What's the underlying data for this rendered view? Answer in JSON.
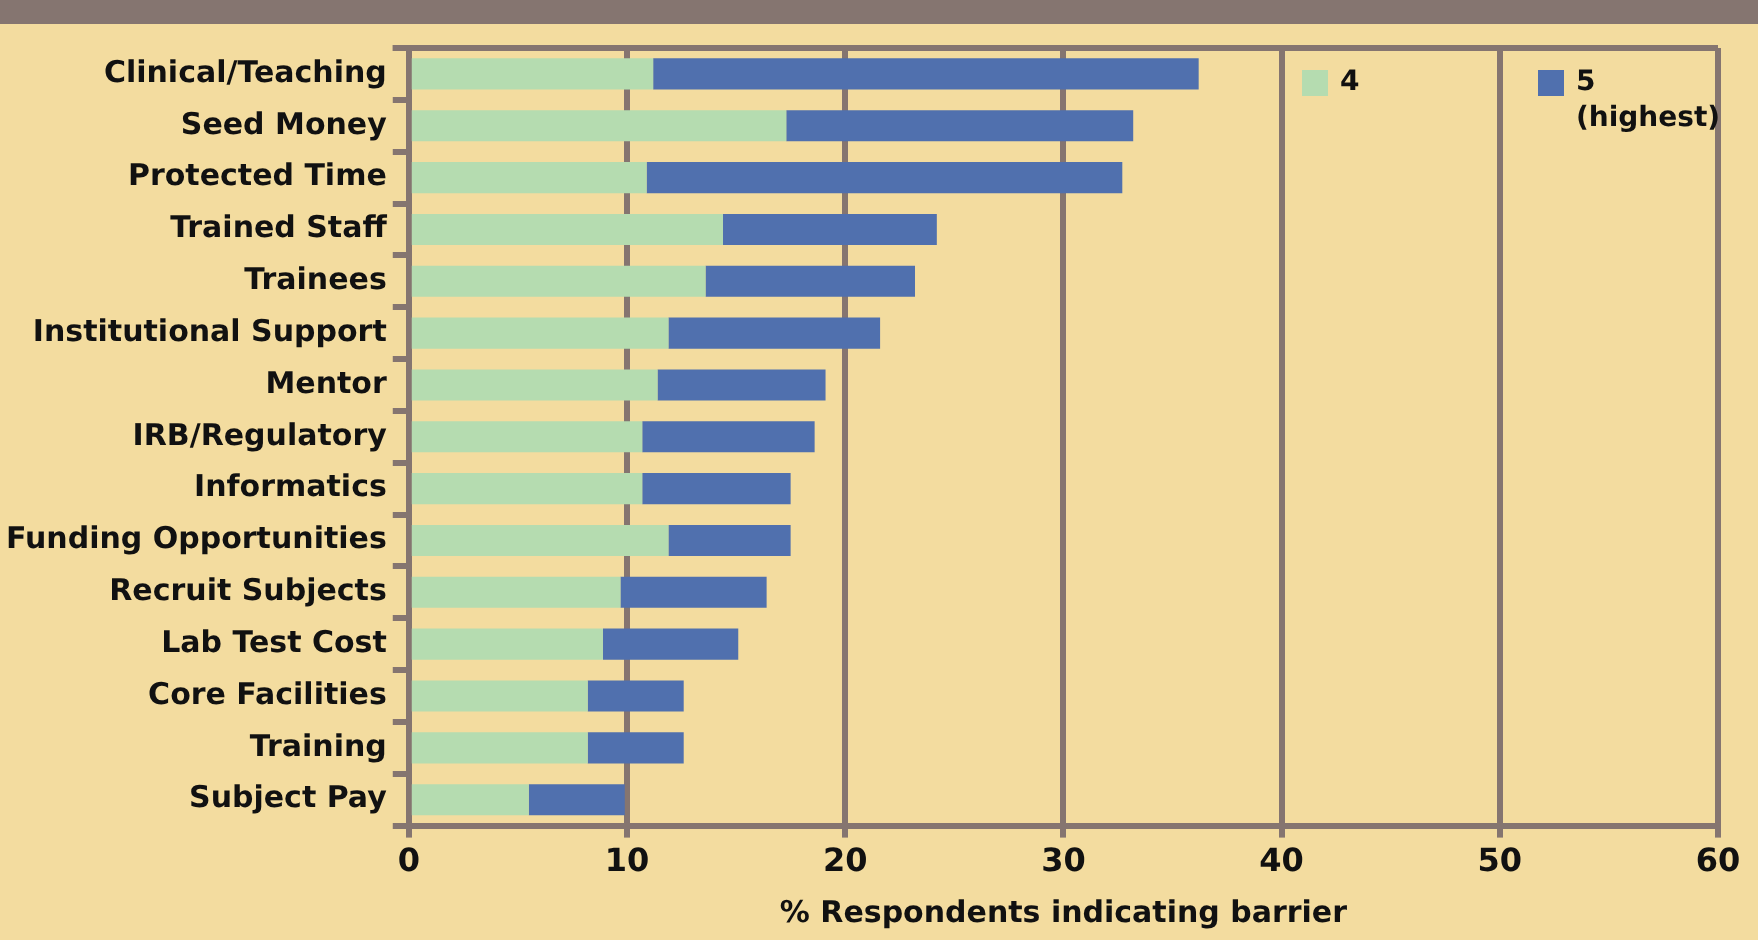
{
  "chart_data": {
    "type": "bar",
    "orientation": "horizontal",
    "stacked": true,
    "categories": [
      "Clinical/Teaching",
      "Seed Money",
      "Protected Time",
      "Trained Staff",
      "Trainees",
      "Institutional Support",
      "Mentor",
      "IRB/Regulatory",
      "Informatics",
      "Funding Opportunities",
      "Recruit Subjects",
      "Lab Test Cost",
      "Core Facilities",
      "Training",
      "Subject Pay"
    ],
    "series": [
      {
        "name": "4",
        "color": "#b5dcb0",
        "values": [
          11.2,
          17.3,
          10.9,
          14.4,
          13.6,
          11.9,
          11.4,
          10.7,
          10.7,
          11.9,
          9.7,
          8.9,
          8.2,
          8.2,
          5.5
        ]
      },
      {
        "name": "5 (highest)",
        "color": "#5070ae",
        "values": [
          25.0,
          15.9,
          21.8,
          9.8,
          9.6,
          9.7,
          7.7,
          7.9,
          6.8,
          5.6,
          6.7,
          6.2,
          4.4,
          4.4,
          4.4
        ]
      }
    ],
    "xlabel": "% Respondents indicating barrier",
    "xlim": [
      0,
      60
    ],
    "xticks": [
      0,
      10,
      20,
      30,
      40,
      50,
      60
    ],
    "grid": "x",
    "legend": "top right"
  }
}
